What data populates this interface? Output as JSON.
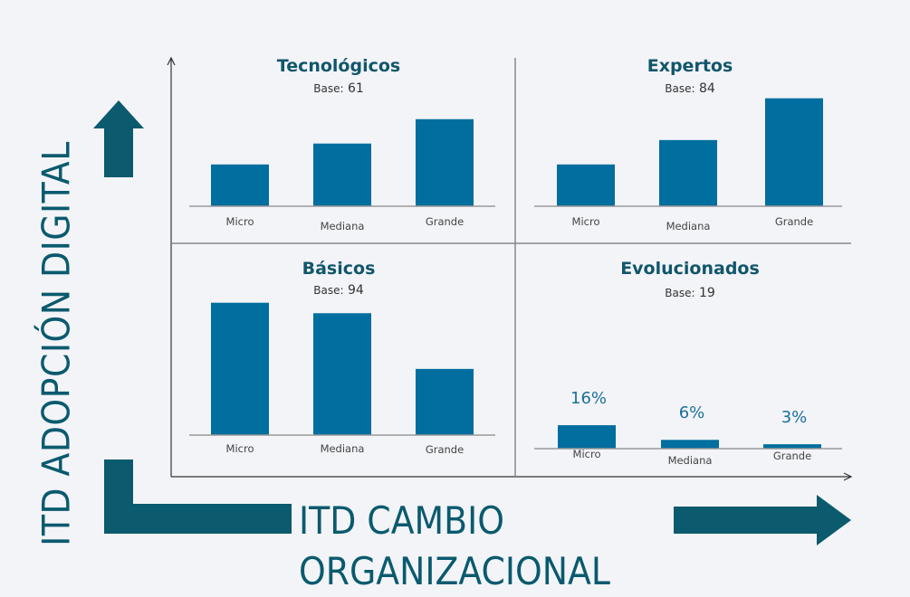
{
  "axis_titles": {
    "y": "ITD ADOPCIÓN DIGITAL",
    "x_line1": "ITD CAMBIO",
    "x_line2": "ORGANIZACIONAL"
  },
  "colors": {
    "bar": "#006e9e",
    "arrow": "#0b5a6e",
    "grid": "#999999"
  },
  "chart_data": [
    {
      "type": "bar",
      "title": "Tecnológicos",
      "base_label": "Base:",
      "base_value": "61",
      "categories": [
        "Micro",
        "Mediana",
        "Grande"
      ],
      "values": [
        12,
        18,
        25
      ],
      "ylim": [
        0,
        40
      ]
    },
    {
      "type": "bar",
      "title": "Expertos",
      "base_label": "Base:",
      "base_value": "84",
      "categories": [
        "Micro",
        "Mediana",
        "Grande"
      ],
      "values": [
        12,
        19,
        31
      ],
      "ylim": [
        0,
        40
      ]
    },
    {
      "type": "bar",
      "title": "Básicos",
      "base_label": "Base:",
      "base_value": "94",
      "categories": [
        "Micro",
        "Mediana",
        "Grande"
      ],
      "values": [
        38,
        35,
        19
      ],
      "ylim": [
        0,
        40
      ]
    },
    {
      "type": "bar",
      "title": "Evolucionados",
      "base_label": "Base:",
      "base_value": "19",
      "categories": [
        "Micro",
        "Mediana",
        "Grande"
      ],
      "values": [
        16,
        6,
        3
      ],
      "value_labels": [
        "16%",
        "6%",
        "3%"
      ],
      "ylim": [
        0,
        60
      ]
    }
  ]
}
